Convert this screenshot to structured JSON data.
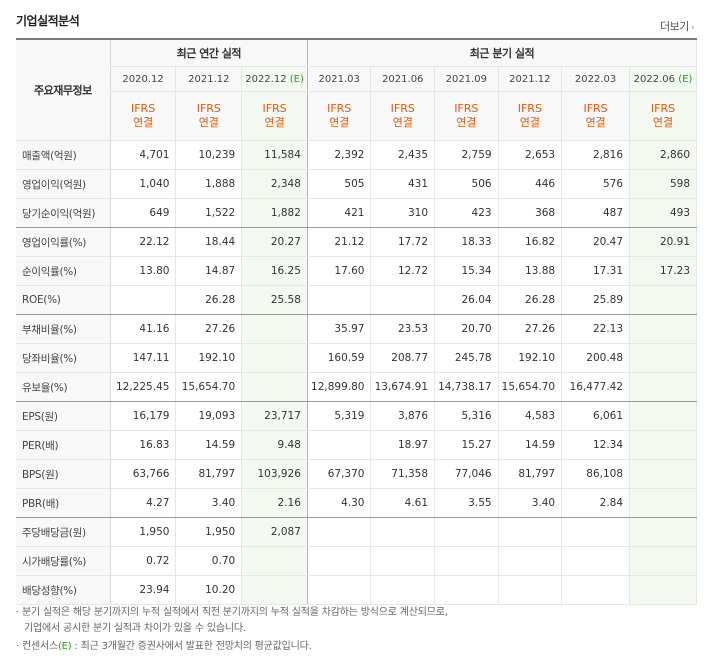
{
  "section_title": "기업실적분석",
  "more_label": "더보기",
  "more_arrow": "›",
  "label_header": "주요재무정보",
  "annual_header": "최근 연간 실적",
  "quarter_header": "최근 분기 실적",
  "annual_periods": [
    "2020.12",
    "2021.12",
    "2022.12"
  ],
  "annual_est_suffix": "(E)",
  "quarter_periods": [
    "2021.03",
    "2021.06",
    "2021.09",
    "2021.12",
    "2022.03",
    "2022.06"
  ],
  "quarter_est_suffix": "(E)",
  "ifrs_label": "IFRS",
  "consolidated_label": "연결",
  "rows": [
    {
      "label": "매출액(억원)",
      "values": [
        "4,701",
        "10,239",
        "11,584",
        "2,392",
        "2,435",
        "2,759",
        "2,653",
        "2,816",
        "2,860"
      ]
    },
    {
      "label": "영업이익(억원)",
      "values": [
        "1,040",
        "1,888",
        "2,348",
        "505",
        "431",
        "506",
        "446",
        "576",
        "598"
      ]
    },
    {
      "label": "당기순이익(억원)",
      "values": [
        "649",
        "1,522",
        "1,882",
        "421",
        "310",
        "423",
        "368",
        "487",
        "493"
      ]
    },
    {
      "label": "영업이익률(%)",
      "values": [
        "22.12",
        "18.44",
        "20.27",
        "21.12",
        "17.72",
        "18.33",
        "16.82",
        "20.47",
        "20.91"
      ]
    },
    {
      "label": "순이익률(%)",
      "values": [
        "13.80",
        "14.87",
        "16.25",
        "17.60",
        "12.72",
        "15.34",
        "13.88",
        "17.31",
        "17.23"
      ]
    },
    {
      "label": "ROE(%)",
      "values": [
        "",
        "26.28",
        "25.58",
        "",
        "",
        "26.04",
        "26.28",
        "25.89",
        ""
      ]
    },
    {
      "label": "부채비율(%)",
      "values": [
        "41.16",
        "27.26",
        "",
        "35.97",
        "23.53",
        "20.70",
        "27.26",
        "22.13",
        ""
      ]
    },
    {
      "label": "당좌비율(%)",
      "values": [
        "147.11",
        "192.10",
        "",
        "160.59",
        "208.77",
        "245.78",
        "192.10",
        "200.48",
        ""
      ]
    },
    {
      "label": "유보율(%)",
      "values": [
        "12,225.45",
        "15,654.70",
        "",
        "12,899.80",
        "13,674.91",
        "14,738.17",
        "15,654.70",
        "16,477.42",
        ""
      ]
    },
    {
      "label": "EPS(원)",
      "values": [
        "16,179",
        "19,093",
        "23,717",
        "5,319",
        "3,876",
        "5,316",
        "4,583",
        "6,061",
        ""
      ]
    },
    {
      "label": "PER(배)",
      "values": [
        "16.83",
        "14.59",
        "9.48",
        "",
        "18.97",
        "15.27",
        "14.59",
        "12.34",
        ""
      ]
    },
    {
      "label": "BPS(원)",
      "values": [
        "63,766",
        "81,797",
        "103,926",
        "67,370",
        "71,358",
        "77,046",
        "81,797",
        "86,108",
        ""
      ]
    },
    {
      "label": "PBR(배)",
      "values": [
        "4.27",
        "3.40",
        "2.16",
        "4.30",
        "4.61",
        "3.55",
        "3.40",
        "2.84",
        ""
      ]
    },
    {
      "label": "주당배당금(원)",
      "values": [
        "1,950",
        "1,950",
        "2,087",
        "",
        "",
        "",
        "",
        "",
        ""
      ]
    },
    {
      "label": "시가배당률(%)",
      "values": [
        "0.72",
        "0.70",
        "",
        "",
        "",
        "",
        "",
        "",
        ""
      ]
    },
    {
      "label": "배당성향(%)",
      "values": [
        "23.94",
        "10.20",
        "",
        "",
        "",
        "",
        "",
        "",
        ""
      ]
    }
  ],
  "notes": {
    "line1": "· 분기 실적은 해당 분기까지의 누적 실적에서 직전 분기까지의 누적 실적을 차감하는 방식으로 계산되므로,",
    "line2": "기업에서 공시한 분기 실적과 차이가 있을 수 있습니다.",
    "line3_prefix": "· 컨센서스",
    "line3_e": "(E)",
    "line3_suffix": " : 최근 3개월간 증권사에서 발표한 전망치의 평균값입니다."
  },
  "colors": {
    "estimate": "#2c9a2c",
    "ifrs": "#e05a10",
    "estimate_bg": "#f3f9f1"
  }
}
